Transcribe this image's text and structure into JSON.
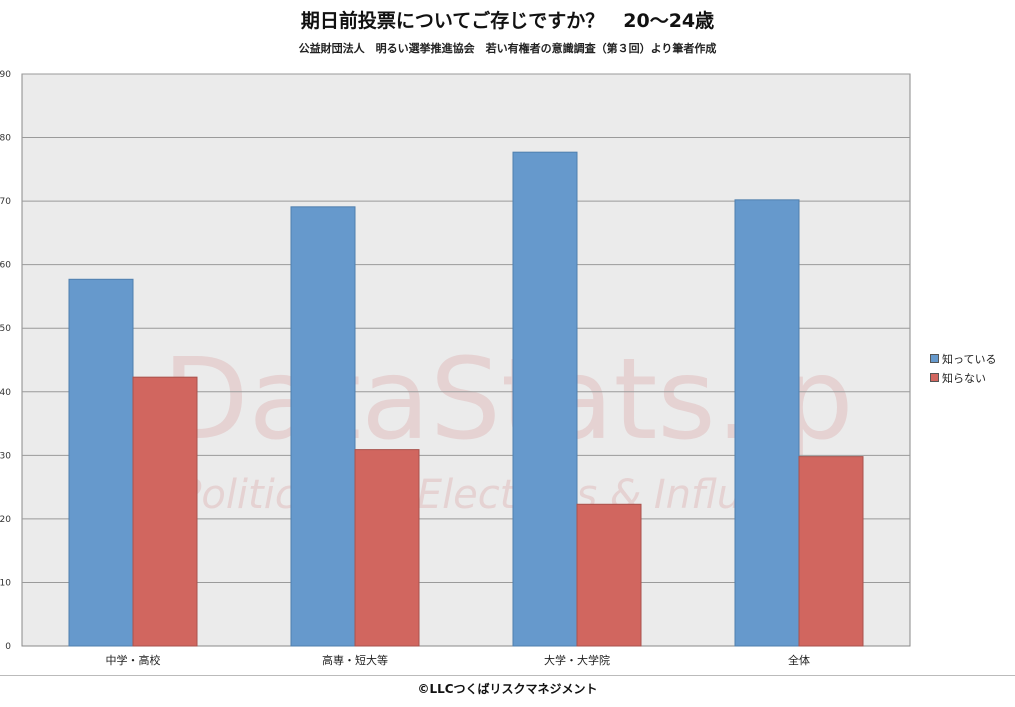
{
  "title": "期日前投票についてご存じですか？　20〜24歳",
  "subtitle": "公益財団法人　明るい選挙推進協会　若い有権者の意識調査（第３回）より筆者作成",
  "footer": "©LLCつくばリスクマネジメント",
  "watermark": {
    "main": "DataStats.jp",
    "sub": "Politicians , Elections & Influence"
  },
  "colors": {
    "plot_background": "#ebebeb",
    "grid": "#9a9a9a"
  },
  "chart_data": {
    "type": "bar",
    "title": "期日前投票についてご存じですか？　20〜24歳",
    "subtitle": "公益財団法人　明るい選挙推進協会　若い有権者の意識調査（第３回）より筆者作成",
    "categories": [
      "中学・高校",
      "高専・短大等",
      "大学・大学院",
      "全体"
    ],
    "series": [
      {
        "name": "知っている",
        "color": "#6699cc",
        "values": [
          57.7,
          69.1,
          77.7,
          70.2
        ]
      },
      {
        "name": "知らない",
        "color": "#d1665f",
        "values": [
          42.3,
          30.9,
          22.3,
          29.8
        ]
      }
    ],
    "xlabel": "",
    "ylabel": "",
    "ylim": [
      0,
      90
    ],
    "yticks": [
      0,
      10,
      20,
      30,
      40,
      50,
      60,
      70,
      80,
      90
    ],
    "grid": true,
    "legend": "right"
  }
}
